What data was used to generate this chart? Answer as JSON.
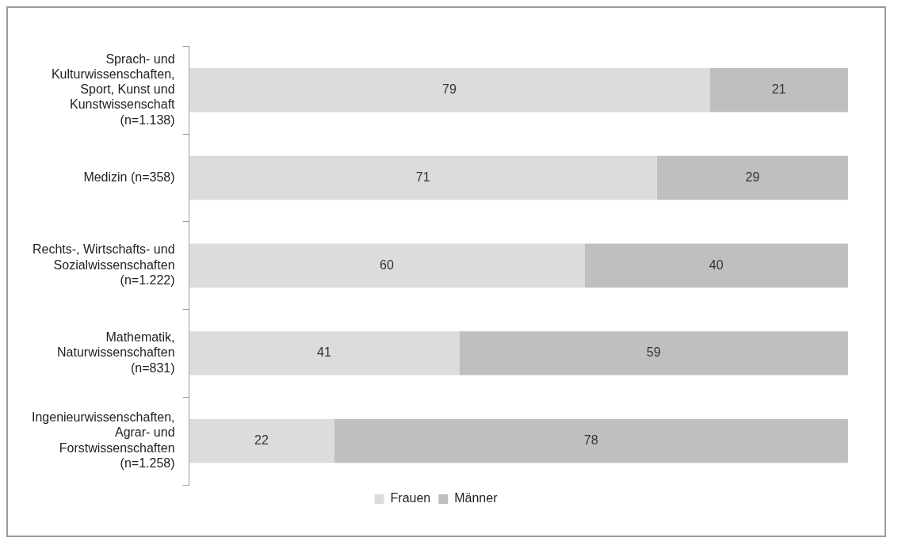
{
  "chart_data": {
    "type": "bar",
    "orientation": "horizontal",
    "stacked": true,
    "data_labels": true,
    "legend": "bottom",
    "grid": false,
    "categories": [
      "Sprach- und Kulturwissenschaften, Sport, Kunst und Kunstwissenschaft (n=1.138)",
      "Medizin (n=358)",
      "Rechts-, Wirtschafts- und Sozialwissenschaften (n=1.222)",
      "Mathematik, Naturwissenschaften (n=831)",
      "Ingenieurwissenschaften, Agrar- und Forstwissenschaften (n=1.258)"
    ],
    "series": [
      {
        "name": "Frauen",
        "color": "#dcdcdc",
        "values": [
          79,
          71,
          60,
          41,
          22
        ]
      },
      {
        "name": "Männer",
        "color": "#bfbfbf",
        "values": [
          21,
          29,
          40,
          59,
          78
        ]
      }
    ]
  }
}
